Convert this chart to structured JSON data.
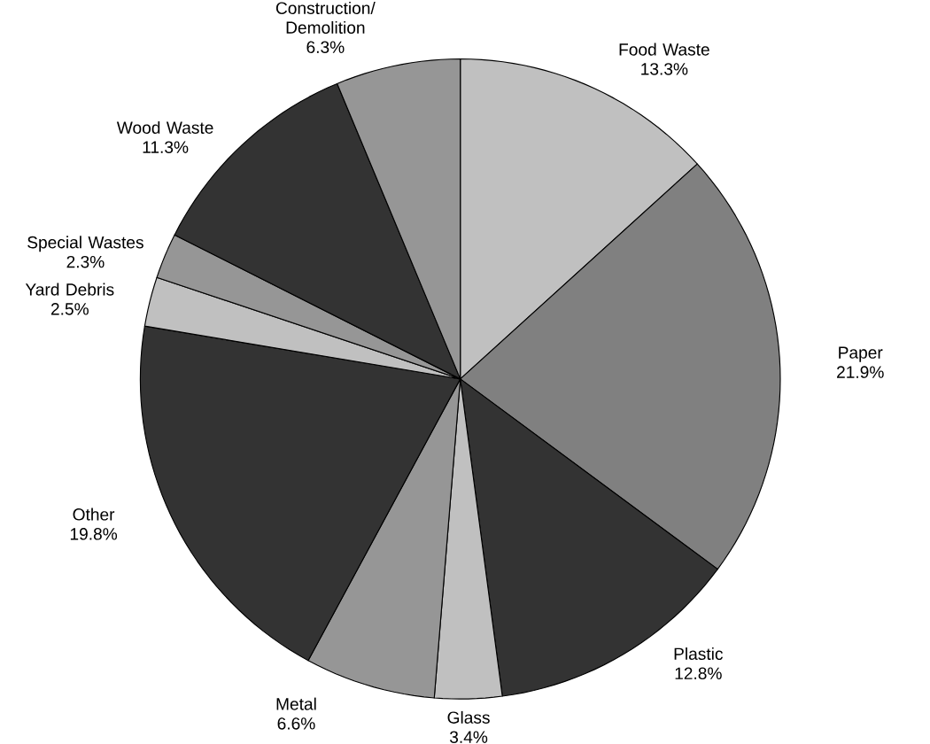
{
  "chart_data": {
    "type": "pie",
    "categories": [
      "Food Waste",
      "Paper",
      "Plastic",
      "Glass",
      "Metal",
      "Other",
      "Yard Debris",
      "Special Wastes",
      "Wood Waste",
      "Construction/ Demolition"
    ],
    "values": [
      13.3,
      21.9,
      12.8,
      3.4,
      6.6,
      19.8,
      2.5,
      2.3,
      11.3,
      6.3
    ],
    "value_labels": [
      "13.3%",
      "21.9%",
      "12.8%",
      "3.4%",
      "6.6%",
      "19.8%",
      "2.5%",
      "2.3%",
      "11.3%",
      "6.3%"
    ],
    "colors": [
      "#c0c0c0",
      "#808080",
      "#333333",
      "#c0c0c0",
      "#969696",
      "#333333",
      "#c0c0c0",
      "#969696",
      "#333333",
      "#969696"
    ]
  }
}
